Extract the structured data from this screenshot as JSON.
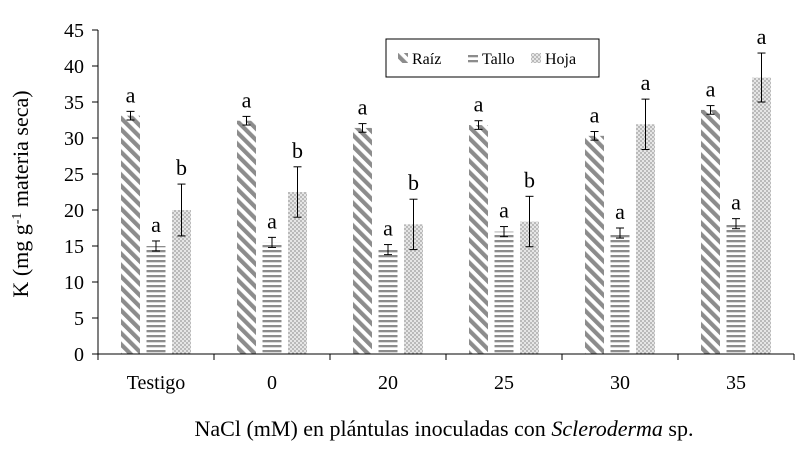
{
  "chart_data": {
    "type": "bar",
    "xlabel_parts": [
      "NaCl (mM) en plántulas inoculadas con ",
      "Scleroderma",
      " sp."
    ],
    "ylabel_parts": [
      "K (mg g",
      "-1",
      " materia seca)"
    ],
    "ylim": [
      0,
      45
    ],
    "yticks": [
      "0",
      "5",
      "10",
      "15",
      "20",
      "25",
      "30",
      "35",
      "40",
      "45"
    ],
    "categories": [
      "Testigo",
      "0",
      "20",
      "25",
      "30",
      "35"
    ],
    "legend_position": "top-center",
    "series": [
      {
        "name": "Raíz",
        "pattern": "diagonal-stripes",
        "color": "#8c8c8c",
        "values": [
          33.1,
          32.4,
          31.4,
          31.8,
          30.3,
          33.9
        ],
        "errors": [
          0.6,
          0.6,
          0.6,
          0.6,
          0.6,
          0.6
        ],
        "letters": [
          "a",
          "a",
          "a",
          "a",
          "a",
          "a"
        ]
      },
      {
        "name": "Tallo",
        "pattern": "horizontal-stripes",
        "color": "#8c8c8c",
        "values": [
          15.0,
          15.5,
          14.5,
          17.0,
          16.8,
          18.1
        ],
        "errors": [
          0.7,
          0.7,
          0.7,
          0.7,
          0.7,
          0.7
        ],
        "letters": [
          "a",
          "a",
          "a",
          "a",
          "a",
          "a"
        ]
      },
      {
        "name": "Hoja",
        "pattern": "dots",
        "color": "#b0b0b0",
        "values": [
          20.0,
          22.5,
          18.0,
          18.4,
          31.9,
          38.4
        ],
        "errors": [
          3.6,
          3.5,
          3.5,
          3.5,
          3.5,
          3.4
        ],
        "letters": [
          "b",
          "b",
          "b",
          "b",
          "a",
          "a"
        ]
      }
    ]
  }
}
